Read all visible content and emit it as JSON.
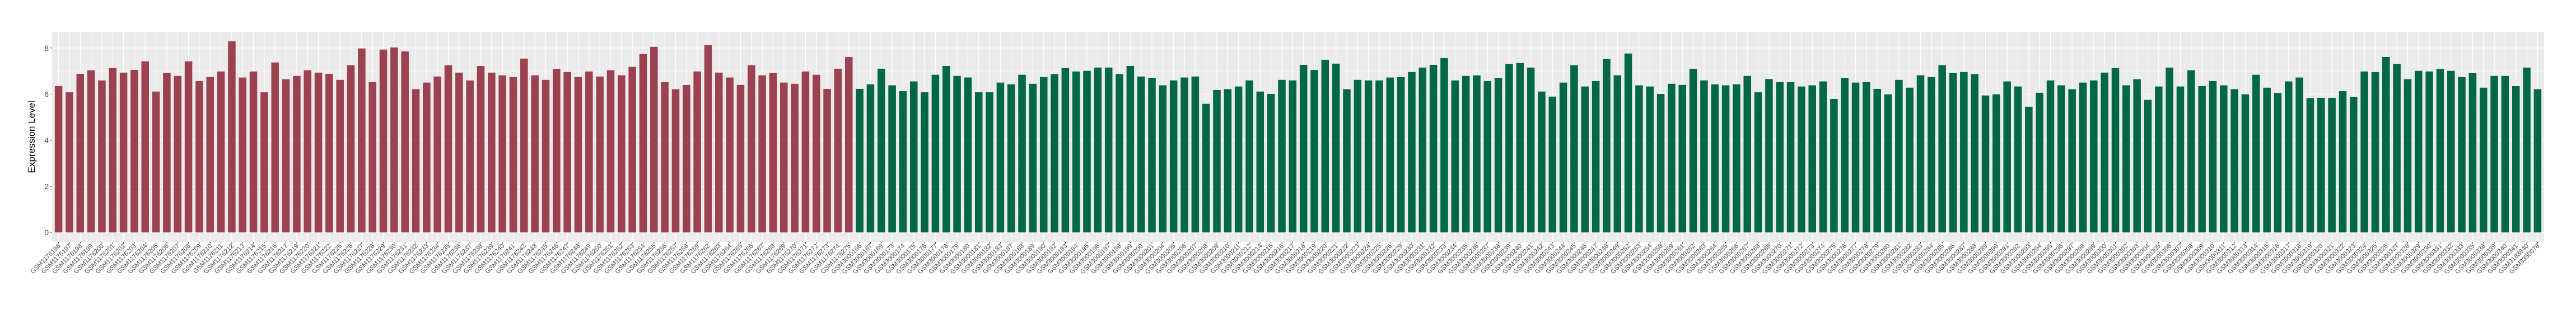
{
  "chart_data": {
    "type": "bar",
    "title": "",
    "xlabel": "",
    "ylabel": "Expression Level",
    "ylim": [
      -0.41,
      8.7
    ],
    "yticks": [
      0,
      2,
      4,
      6,
      8
    ],
    "grid": true,
    "legend": "none",
    "series": [
      {
        "color": "#9B4150",
        "categories": [
          "GSM1176196",
          "GSM1176197",
          "GSM1176198",
          "GSM1176199",
          "GSM1176200",
          "GSM1176201",
          "GSM1176202",
          "GSM1176203",
          "GSM1176204",
          "GSM1176205",
          "GSM1176206",
          "GSM1176207",
          "GSM1176208",
          "GSM1176209",
          "GSM1176210",
          "GSM1176211",
          "GSM1176212",
          "GSM1176213",
          "GSM1176214",
          "GSM1176215",
          "GSM1176216",
          "GSM1176217",
          "GSM1176219",
          "GSM1176220",
          "GSM1176221",
          "GSM1176222",
          "GSM1176225",
          "GSM1176226",
          "GSM1176227",
          "GSM1176228",
          "GSM1176229",
          "GSM1176230",
          "GSM1176231",
          "GSM1176232",
          "GSM1176233",
          "GSM1176234",
          "GSM1176235",
          "GSM1176236",
          "GSM1176237",
          "GSM1176238",
          "GSM1176239",
          "GSM1176240",
          "GSM1176241",
          "GSM1176242",
          "GSM1176243",
          "GSM1176245",
          "GSM1176246",
          "GSM1176247",
          "GSM1176248",
          "GSM1176249",
          "GSM1176250",
          "GSM1176251",
          "GSM1176252",
          "GSM1176253",
          "GSM1176254",
          "GSM1176255",
          "GSM1176256",
          "GSM1176257",
          "GSM1176258",
          "GSM1176259",
          "GSM1176262",
          "GSM1176263",
          "GSM1176264",
          "GSM1176265",
          "GSM1176266",
          "GSM1176267",
          "GSM1176268",
          "GSM1176269",
          "GSM1176270",
          "GSM1176271",
          "GSM1176272",
          "GSM1176273",
          "GSM1176274",
          "GSM1176275"
        ],
        "values": [
          6.35,
          6.08,
          6.88,
          7.03,
          6.59,
          7.13,
          6.93,
          7.05,
          7.42,
          6.11,
          6.91,
          6.79,
          7.42,
          6.57,
          6.74,
          6.98,
          8.29,
          6.72,
          6.98,
          6.08,
          7.37,
          6.64,
          6.79,
          7.03,
          6.93,
          6.88,
          6.62,
          7.25,
          7.98,
          6.52,
          7.93,
          8.02,
          7.85,
          6.21,
          6.5,
          6.76,
          7.25,
          6.93,
          6.59,
          7.22,
          6.93,
          6.81,
          6.74,
          7.54,
          6.81,
          6.62,
          7.09,
          6.96,
          6.74,
          6.98,
          6.76,
          7.03,
          6.81,
          7.18,
          7.74,
          8.05,
          6.52,
          6.21,
          6.4,
          6.98,
          8.12,
          6.93,
          6.72,
          6.4,
          7.25,
          6.81,
          6.91,
          6.5,
          6.45,
          6.98,
          6.84,
          6.23,
          7.1,
          7.61
        ]
      },
      {
        "color": "#006846",
        "categories": [
          "GSM3000166",
          "GSM3000167",
          "GSM3000169",
          "GSM3000173",
          "GSM3000174",
          "GSM3000175",
          "GSM3000176",
          "GSM3000177",
          "GSM3000178",
          "GSM3000179",
          "GSM3000180",
          "GSM3000181",
          "GSM3000182",
          "GSM3000183",
          "GSM3000187",
          "GSM3000188",
          "GSM3000189",
          "GSM3000190",
          "GSM3000192",
          "GSM3000193",
          "GSM3000194",
          "GSM3000195",
          "GSM3000196",
          "GSM3000197",
          "GSM3000198",
          "GSM3000199",
          "GSM3000200",
          "GSM3000201",
          "GSM3000204",
          "GSM3000205",
          "GSM3000206",
          "GSM3000207",
          "GSM3000208",
          "GSM3000209",
          "GSM3000210",
          "GSM3000211",
          "GSM3000212",
          "GSM3000214",
          "GSM3000215",
          "GSM3000216",
          "GSM3000217",
          "GSM3000218",
          "GSM3000219",
          "GSM3000220",
          "GSM3000221",
          "GSM3000222",
          "GSM3000223",
          "GSM3000224",
          "GSM3000225",
          "GSM3000226",
          "GSM3000229",
          "GSM3000230",
          "GSM3000231",
          "GSM3000232",
          "GSM3000233",
          "GSM3000234",
          "GSM3000235",
          "GSM3000236",
          "GSM3000237",
          "GSM3000238",
          "GSM3000239",
          "GSM3000240",
          "GSM3000241",
          "GSM3000242",
          "GSM3000243",
          "GSM3000244",
          "GSM3000245",
          "GSM3000246",
          "GSM3000247",
          "GSM3000248",
          "GSM3000249",
          "GSM3000252",
          "GSM3000253",
          "GSM3000254",
          "GSM3000258",
          "GSM3000259",
          "GSM3000261",
          "GSM3000262",
          "GSM3000263",
          "GSM3000264",
          "GSM3000265",
          "GSM3000266",
          "GSM3000267",
          "GSM3000268",
          "GSM3000269",
          "GSM3000270",
          "GSM3000271",
          "GSM3000272",
          "GSM3000273",
          "GSM3000274",
          "GSM3000275",
          "GSM3000276",
          "GSM3000277",
          "GSM3000278",
          "GSM3000279",
          "GSM3000280",
          "GSM3000281",
          "GSM3000282",
          "GSM3000283",
          "GSM3000284",
          "GSM3000285",
          "GSM3000286",
          "GSM3000287",
          "GSM3000288",
          "GSM3000289",
          "GSM3000290",
          "GSM3000291",
          "GSM3000292",
          "GSM3000293",
          "GSM3000294",
          "GSM3000295",
          "GSM3000296",
          "GSM3000297",
          "GSM3000298",
          "GSM3000299",
          "GSM3000300",
          "GSM3000301",
          "GSM3000302",
          "GSM3000303",
          "GSM3000304",
          "GSM3000305",
          "GSM3000306",
          "GSM3000307",
          "GSM3000308",
          "GSM3000309",
          "GSM3000310",
          "GSM3000311",
          "GSM3000312",
          "GSM3000313",
          "GSM3000314",
          "GSM3000315",
          "GSM3000316",
          "GSM3000317",
          "GSM3000318",
          "GSM3000319",
          "GSM3000320",
          "GSM3000321",
          "GSM3000322",
          "GSM3000323",
          "GSM3000324",
          "GSM3000325",
          "GSM3000326",
          "GSM3000327",
          "GSM3000328",
          "GSM3000329",
          "GSM3000330",
          "GSM3000331",
          "GSM3000332",
          "GSM3000333",
          "GSM3000335",
          "GSM3000338",
          "GSM3000339",
          "GSM3000340",
          "GSM3000341",
          "GSM3188840",
          "GSM3350078"
        ],
        "values": [
          6.23,
          6.42,
          7.1,
          6.38,
          6.13,
          6.55,
          6.08,
          6.84,
          7.22,
          6.79,
          6.72,
          6.08,
          6.08,
          6.5,
          6.42,
          6.84,
          6.45,
          6.74,
          6.86,
          7.13,
          6.98,
          7.01,
          7.15,
          7.15,
          6.86,
          7.22,
          6.76,
          6.69,
          6.38,
          6.59,
          6.72,
          6.76,
          5.58,
          6.18,
          6.21,
          6.33,
          6.59,
          6.11,
          6.01,
          6.62,
          6.59,
          7.27,
          7.05,
          7.49,
          7.32,
          6.21,
          6.62,
          6.59,
          6.59,
          6.72,
          6.74,
          6.96,
          7.15,
          7.27,
          7.56,
          6.59,
          6.79,
          6.81,
          6.57,
          6.69,
          7.3,
          7.35,
          7.15,
          6.11,
          5.89,
          6.5,
          7.25,
          6.33,
          6.57,
          7.52,
          6.81,
          7.76,
          6.38,
          6.33,
          6.01,
          6.45,
          6.4,
          7.09,
          6.59,
          6.42,
          6.38,
          6.42,
          6.79,
          6.08,
          6.65,
          6.52,
          6.52,
          6.33,
          6.38,
          6.55,
          5.79,
          6.69,
          6.5,
          6.52,
          6.23,
          5.99,
          6.62,
          6.28,
          6.81,
          6.74,
          7.25,
          6.91,
          6.96,
          6.86,
          5.94,
          5.99,
          6.55,
          6.33,
          5.45,
          6.06,
          6.59,
          6.38,
          6.21,
          6.5,
          6.59,
          6.93,
          7.13,
          6.38,
          6.64,
          5.75,
          6.33,
          7.15,
          6.33,
          7.03,
          6.35,
          6.57,
          6.38,
          6.21,
          5.99,
          6.84,
          6.28,
          6.04,
          6.55,
          6.72,
          5.82,
          5.84,
          5.84,
          6.13,
          5.87,
          6.98,
          6.96,
          7.61,
          7.3,
          6.64,
          7.01,
          6.98,
          7.09,
          7.01,
          6.74,
          6.91,
          6.28,
          6.79,
          6.79,
          6.35,
          7.15,
          6.21
        ]
      }
    ]
  },
  "colors": {
    "panel": "#EBEBEB",
    "grid": "#FFFFFF"
  }
}
